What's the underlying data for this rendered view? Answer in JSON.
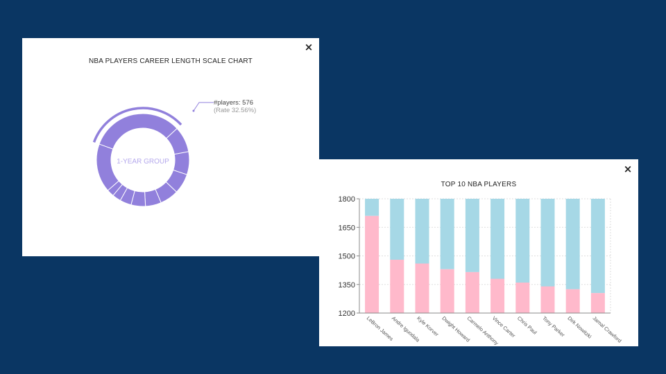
{
  "donut_panel": {
    "title": "NBA PLAYERS CAREER LENGTH SCALE CHART",
    "close_label": "×"
  },
  "bar_panel": {
    "title": "TOP 10 NBA PLAYERS",
    "close_label": "×"
  },
  "colors": {
    "background": "#0a3663",
    "donut": "#9180dc",
    "bar_top": "#a6d8e6",
    "bar_bottom": "#ffb9cb"
  },
  "chart_data": [
    {
      "type": "pie",
      "variant": "donut",
      "title": "NBA PLAYERS CAREER LENGTH SCALE CHART",
      "center_label": "1-YEAR GROUP",
      "highlighted_segment": {
        "label": "1-YEAR GROUP",
        "tooltip_line1": "#players: 576",
        "tooltip_line2": "(Rate 32.56%)",
        "players": 576,
        "rate_percent": 32.56
      },
      "segment_shares_percent": [
        32.56,
        9,
        8,
        7,
        6.5,
        5.5,
        5,
        4,
        3,
        2.5,
        16.94
      ]
    },
    {
      "type": "bar",
      "stacked": true,
      "title": "TOP 10 NBA PLAYERS",
      "categories": [
        "LeBron James",
        "Andre Iguodala",
        "Kyle Korver",
        "Dwight Howard",
        "Carmelo Anthony",
        "Vince Carter",
        "Chris Paul",
        "Tony Parker",
        "Dirk Nowitzki",
        "Jamal Crawford"
      ],
      "values": [
        1710,
        1480,
        1460,
        1430,
        1415,
        1380,
        1360,
        1340,
        1325,
        1305
      ],
      "ylim": [
        1200,
        1800
      ],
      "yticks": [
        "1800",
        "1650",
        "1500",
        "1350",
        "1200"
      ],
      "grid": true
    }
  ]
}
